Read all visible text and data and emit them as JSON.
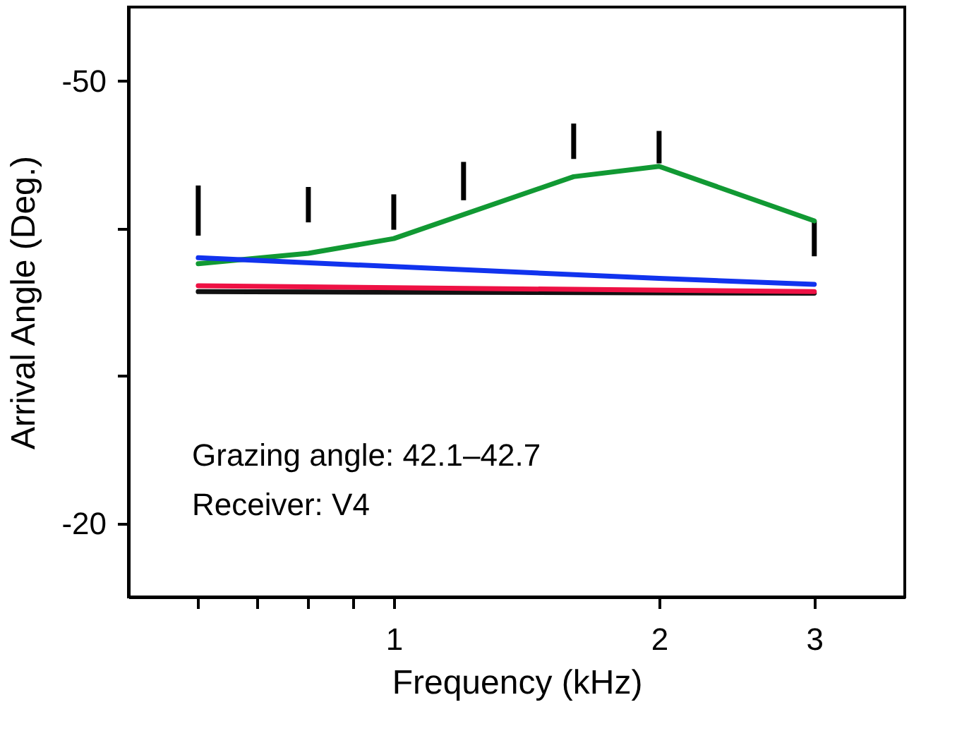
{
  "chart_data": {
    "type": "line",
    "xlabel": "Frequency (kHz)",
    "ylabel": "Arrival Angle (Deg.)",
    "log": "x",
    "xlim": [
      0.5,
      3.8
    ],
    "ylim": [
      -15,
      -55
    ],
    "xticks": [
      {
        "value": 0.6,
        "label": null
      },
      {
        "value": 0.7,
        "label": null
      },
      {
        "value": 0.8,
        "label": null
      },
      {
        "value": 0.9,
        "label": null
      },
      1,
      2,
      3
    ],
    "yticks": [
      -50,
      {
        "value": -40,
        "label": null
      },
      {
        "value": -30,
        "label": null
      },
      -20
    ],
    "grid": false,
    "line_style": "solid",
    "annotations": [
      "Grazing angle: 42.1–42.7",
      "Receiver: V4"
    ],
    "series": [
      {
        "type": "bar",
        "color": "#000000",
        "x": [
          0.6,
          0.8,
          1.0,
          1.2,
          1.6,
          2.0,
          3.0
        ],
        "base": [
          -42.9,
          -42.8,
          -42.3,
          -44.5,
          -47.1,
          -46.6,
          -40.5
        ],
        "values": [
          3.4,
          2.4,
          2.4,
          2.6,
          2.4,
          2.2,
          2.4
        ]
      },
      {
        "color": "#119933",
        "x": [
          0.6,
          0.8,
          1.0,
          1.6,
          2.0,
          3.0
        ],
        "values": [
          -37.6,
          -38.3,
          -39.3,
          -43.5,
          -44.2,
          -40.5
        ]
      },
      {
        "color": "#1133ee",
        "x": [
          0.6,
          1.0,
          2.0,
          3.0
        ],
        "values": [
          -38.0,
          -37.4,
          -36.6,
          -36.2
        ]
      },
      {
        "color": "#111111",
        "x": [
          0.6,
          3.0
        ],
        "values": [
          -35.7,
          -35.6
        ]
      },
      {
        "color": "#ee1144",
        "x": [
          0.6,
          3.0
        ],
        "values": [
          -36.1,
          -35.7
        ]
      }
    ]
  }
}
